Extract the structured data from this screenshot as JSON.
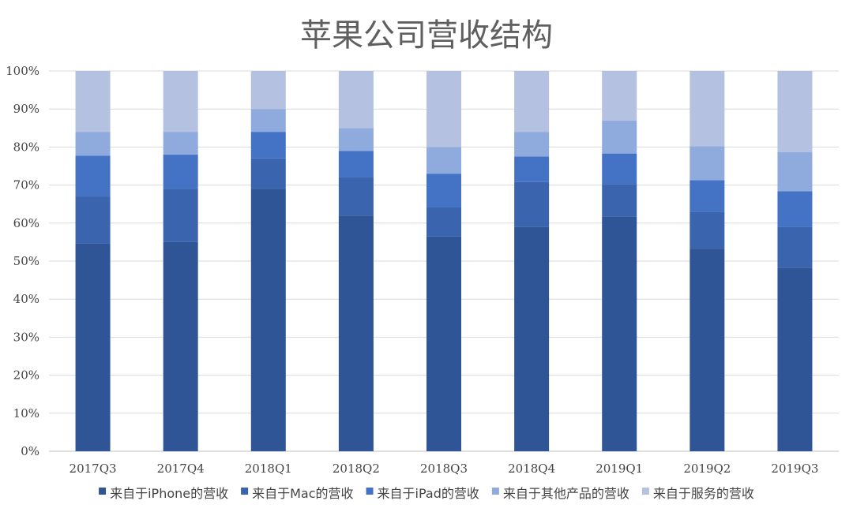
{
  "chart_data": {
    "type": "bar",
    "stacked": true,
    "title": "苹果公司营收结构",
    "categories": [
      "2017Q3",
      "2017Q4",
      "2018Q1",
      "2018Q2",
      "2018Q3",
      "2018Q4",
      "2019Q1",
      "2019Q2",
      "2019Q3"
    ],
    "y_ticks": [
      "0%",
      "10%",
      "20%",
      "30%",
      "40%",
      "50%",
      "60%",
      "70%",
      "80%",
      "90%",
      "100%"
    ],
    "ylim": [
      0,
      100
    ],
    "grid": true,
    "legend_position": "bottom",
    "series": [
      {
        "name": "来自于iPhone的营收",
        "color": "#2f5597",
        "values": [
          54.7,
          55.0,
          69.0,
          62.0,
          56.5,
          59.0,
          61.7,
          53.3,
          48.3
        ]
      },
      {
        "name": "来自于Mac的营收",
        "color": "#3a64ad",
        "values": [
          12.3,
          14.0,
          8.0,
          10.0,
          7.7,
          11.8,
          8.6,
          9.7,
          10.7
        ]
      },
      {
        "name": "来自于iPad的营收",
        "color": "#4472c4",
        "values": [
          10.7,
          9.0,
          7.0,
          7.0,
          8.8,
          6.7,
          8.0,
          8.3,
          9.4
        ]
      },
      {
        "name": "来自于其他产品的营收",
        "color": "#8faadc",
        "values": [
          6.3,
          6.0,
          6.0,
          6.0,
          7.0,
          6.5,
          8.7,
          8.9,
          10.3
        ]
      },
      {
        "name": "来自于服务的营收",
        "color": "#b4c1e0",
        "values": [
          16.0,
          16.0,
          10.0,
          15.0,
          20.0,
          16.0,
          13.0,
          19.8,
          21.3
        ]
      }
    ]
  }
}
